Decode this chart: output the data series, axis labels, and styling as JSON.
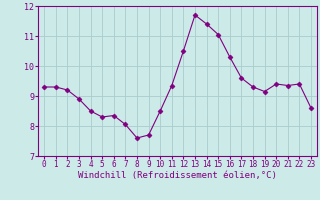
{
  "x": [
    0,
    1,
    2,
    3,
    4,
    5,
    6,
    7,
    8,
    9,
    10,
    11,
    12,
    13,
    14,
    15,
    16,
    17,
    18,
    19,
    20,
    21,
    22,
    23
  ],
  "y": [
    9.3,
    9.3,
    9.2,
    8.9,
    8.5,
    8.3,
    8.35,
    8.05,
    7.6,
    7.7,
    8.5,
    9.35,
    10.5,
    11.7,
    11.4,
    11.05,
    10.3,
    9.6,
    9.3,
    9.15,
    9.4,
    9.35,
    9.4,
    8.6
  ],
  "line_color": "#800080",
  "marker": "D",
  "marker_size": 2.5,
  "bg_color": "#cceae8",
  "grid_color": "#aacccc",
  "xlabel": "Windchill (Refroidissement éolien,°C)",
  "ylim": [
    7,
    12
  ],
  "xlim": [
    -0.5,
    23.5
  ],
  "yticks": [
    7,
    8,
    9,
    10,
    11,
    12
  ],
  "xticks": [
    0,
    1,
    2,
    3,
    4,
    5,
    6,
    7,
    8,
    9,
    10,
    11,
    12,
    13,
    14,
    15,
    16,
    17,
    18,
    19,
    20,
    21,
    22,
    23
  ],
  "label_color": "#800080",
  "tick_color": "#800080",
  "spine_color": "#800080",
  "tick_fontsize": 5.5,
  "ytick_fontsize": 6.0,
  "xlabel_fontsize": 6.5
}
